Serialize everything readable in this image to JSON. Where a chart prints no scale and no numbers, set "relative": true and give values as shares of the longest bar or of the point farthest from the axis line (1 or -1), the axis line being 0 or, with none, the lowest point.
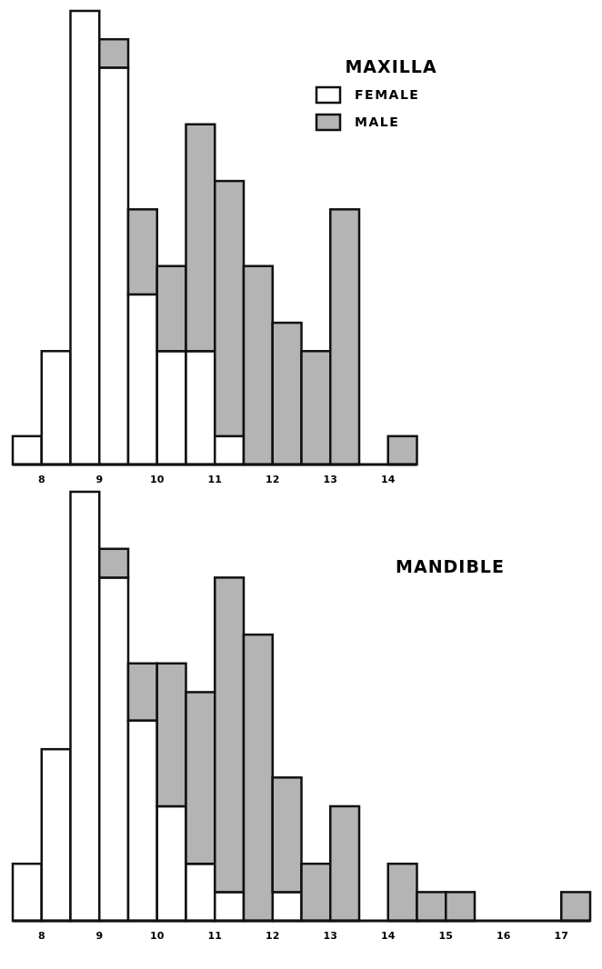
{
  "chart_data": [
    {
      "type": "bar",
      "title": "MAXILLA",
      "relative": true,
      "stacked": true,
      "legend": "top right",
      "x": [
        7.75,
        8.25,
        8.75,
        9.25,
        9.75,
        10.25,
        10.75,
        11.25,
        11.75,
        12.25,
        12.75,
        13.25,
        13.75,
        14.25
      ],
      "xlim": [
        7.5,
        14.5
      ],
      "xticks": [
        8,
        9,
        10,
        11,
        12,
        13,
        14
      ],
      "series": [
        {
          "name": "FEMALE",
          "color": "#ffffff",
          "values": [
            0.0625,
            0.25,
            1,
            0.875,
            0.375,
            0.25,
            0.25,
            0.0625,
            0,
            0,
            0,
            0,
            0,
            0
          ]
        },
        {
          "name": "MALE",
          "color": "#b4b4b4",
          "values": [
            0,
            0,
            0,
            0.0625,
            0.1875,
            0.1875,
            0.5,
            0.5625,
            0.4375,
            0.3125,
            0.25,
            0.5625,
            0,
            0.0625
          ]
        }
      ]
    },
    {
      "type": "bar",
      "title": "MANDIBLE",
      "relative": true,
      "stacked": true,
      "x": [
        7.75,
        8.25,
        8.75,
        9.25,
        9.75,
        10.25,
        10.75,
        11.25,
        11.75,
        12.25,
        12.75,
        13.25,
        13.75,
        14.25,
        14.75,
        15.25,
        15.75,
        16.25,
        16.75,
        17.25
      ],
      "xlim": [
        7.5,
        17.5
      ],
      "xticks": [
        8,
        9,
        10,
        11,
        12,
        13,
        14,
        15,
        16,
        17
      ],
      "series": [
        {
          "color": "#ffffff",
          "values": [
            0.133,
            0.4,
            1,
            0.8,
            0.467,
            0.267,
            0.133,
            0.067,
            0,
            0.067,
            0,
            0,
            0,
            0,
            0,
            0,
            0,
            0,
            0,
            0
          ]
        },
        {
          "color": "#b4b4b4",
          "values": [
            0,
            0,
            0,
            0.067,
            0.133,
            0.333,
            0.4,
            0.733,
            0.667,
            0.267,
            0.133,
            0.267,
            0,
            0.133,
            0.067,
            0.067,
            0,
            0,
            0,
            0.067
          ]
        }
      ]
    }
  ]
}
